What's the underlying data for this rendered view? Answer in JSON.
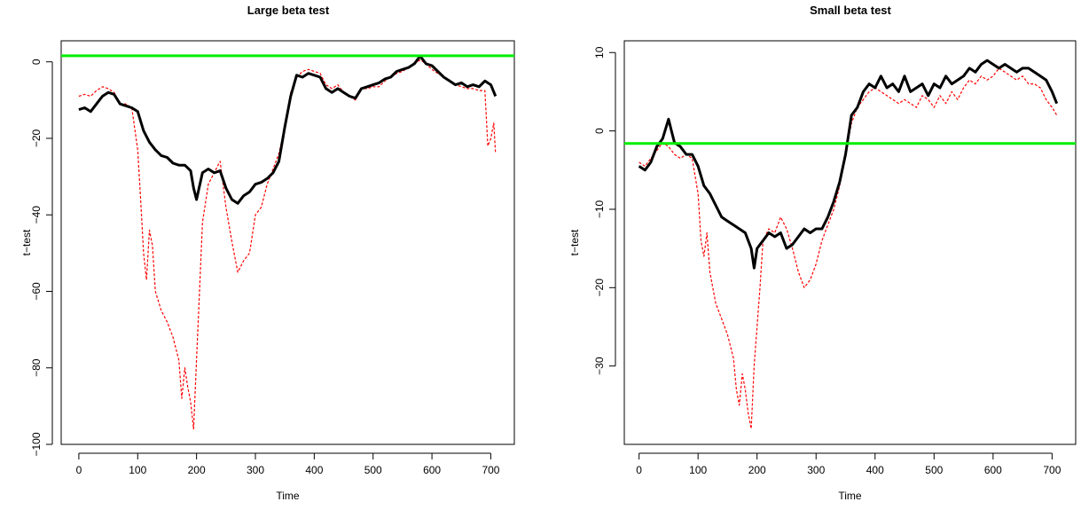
{
  "chart_data": [
    {
      "type": "line",
      "title": "Large beta test",
      "xlabel": "Time",
      "ylabel": "t−test",
      "xlim": [
        -30,
        740
      ],
      "ylim": [
        -100,
        5.5
      ],
      "xticks": [
        0,
        100,
        200,
        300,
        400,
        500,
        600,
        700
      ],
      "xtick_labels": [
        "0",
        "100",
        "200",
        "300",
        "400",
        "500",
        "600",
        "700"
      ],
      "yticks": [
        0,
        -20,
        -40,
        -60,
        -80,
        -100
      ],
      "ytick_labels": [
        "0",
        "−20",
        "−40",
        "−60",
        "−80",
        "−100"
      ],
      "grid": false,
      "hline": {
        "y": 1.6,
        "color": "#00ee00"
      },
      "series": [
        {
          "style": "solid-thick",
          "color": "#000000",
          "x": [
            0,
            10,
            20,
            30,
            40,
            50,
            60,
            70,
            80,
            90,
            100,
            110,
            120,
            130,
            140,
            150,
            160,
            170,
            180,
            190,
            195,
            200,
            210,
            220,
            230,
            240,
            250,
            260,
            270,
            280,
            290,
            300,
            310,
            320,
            330,
            340,
            350,
            360,
            370,
            380,
            390,
            400,
            410,
            420,
            430,
            440,
            450,
            460,
            470,
            480,
            490,
            500,
            510,
            520,
            530,
            540,
            550,
            560,
            570,
            580,
            590,
            600,
            610,
            620,
            630,
            640,
            650,
            660,
            670,
            680,
            690,
            700,
            708
          ],
          "y": [
            -12.5,
            -12,
            -13,
            -11,
            -9,
            -8,
            -8.5,
            -11,
            -11.5,
            -12,
            -13,
            -18,
            -21,
            -23,
            -24.5,
            -25,
            -26.5,
            -27,
            -27,
            -28.5,
            -33,
            -36,
            -29,
            -28,
            -29,
            -28.5,
            -33,
            -36,
            -37,
            -35,
            -34,
            -32,
            -31.5,
            -30.5,
            -29,
            -26,
            -17,
            -9,
            -3.5,
            -4,
            -3,
            -3.5,
            -4,
            -7,
            -8,
            -7,
            -8,
            -9,
            -9.5,
            -7,
            -6.5,
            -6,
            -5.5,
            -4.5,
            -4,
            -2.5,
            -2,
            -1.5,
            -0.5,
            1.5,
            -0.5,
            -1,
            -2.5,
            -4,
            -5,
            -6,
            -5.5,
            -6.5,
            -6,
            -6.5,
            -5,
            -6,
            -9
          ]
        },
        {
          "style": "dashed-thin",
          "color": "#ff0000",
          "x": [
            0,
            10,
            20,
            30,
            40,
            50,
            60,
            70,
            80,
            90,
            100,
            105,
            110,
            115,
            120,
            125,
            130,
            140,
            150,
            160,
            170,
            175,
            180,
            185,
            190,
            195,
            200,
            205,
            210,
            220,
            230,
            240,
            250,
            260,
            270,
            280,
            290,
            300,
            310,
            320,
            330,
            340,
            350,
            360,
            370,
            380,
            390,
            400,
            410,
            420,
            430,
            440,
            450,
            460,
            470,
            480,
            490,
            500,
            510,
            520,
            530,
            540,
            550,
            560,
            570,
            580,
            590,
            600,
            610,
            620,
            630,
            640,
            650,
            660,
            670,
            680,
            690,
            695,
            700,
            705,
            708
          ],
          "y": [
            -9,
            -8.5,
            -9,
            -7.5,
            -6.5,
            -7,
            -8,
            -11,
            -11,
            -12,
            -23,
            -36,
            -50,
            -57,
            -44,
            -48,
            -60,
            -65,
            -68,
            -72,
            -78,
            -88,
            -80,
            -85,
            -89,
            -96,
            -78,
            -60,
            -42,
            -32,
            -29,
            -26,
            -38,
            -47,
            -55,
            -52,
            -50,
            -40,
            -38,
            -32,
            -28,
            -24,
            -17,
            -8,
            -4,
            -2.5,
            -2,
            -2.5,
            -3,
            -6,
            -7,
            -6,
            -8,
            -9,
            -10,
            -7,
            -7,
            -6.5,
            -6.5,
            -5,
            -4,
            -3,
            -2.5,
            -1.5,
            -0.5,
            0.5,
            -0.5,
            -2,
            -3,
            -4,
            -5,
            -6,
            -6.5,
            -7,
            -7,
            -7.5,
            -7.5,
            -22,
            -20,
            -16,
            -24
          ]
        }
      ]
    },
    {
      "type": "line",
      "title": "Small beta test",
      "xlabel": "Time",
      "ylabel": "t−test",
      "xlim": [
        -25,
        740
      ],
      "ylim": [
        -40,
        11.5
      ],
      "xticks": [
        0,
        100,
        200,
        300,
        400,
        500,
        600,
        700
      ],
      "xtick_labels": [
        "0",
        "100",
        "200",
        "300",
        "400",
        "500",
        "600",
        "700"
      ],
      "yticks": [
        10,
        0,
        -10,
        -20,
        -30
      ],
      "ytick_labels": [
        "10",
        "0",
        "−10",
        "−20",
        "−30"
      ],
      "grid": false,
      "hline": {
        "y": -1.6,
        "color": "#00ee00"
      },
      "series": [
        {
          "style": "solid-thick",
          "color": "#000000",
          "x": [
            0,
            10,
            20,
            30,
            40,
            50,
            55,
            60,
            70,
            80,
            90,
            100,
            110,
            120,
            130,
            140,
            150,
            160,
            170,
            180,
            190,
            195,
            200,
            210,
            220,
            230,
            240,
            250,
            260,
            270,
            280,
            290,
            300,
            310,
            320,
            330,
            340,
            350,
            360,
            370,
            380,
            390,
            400,
            410,
            420,
            430,
            440,
            450,
            460,
            470,
            480,
            490,
            500,
            510,
            520,
            530,
            540,
            550,
            560,
            570,
            580,
            590,
            600,
            610,
            620,
            630,
            640,
            650,
            660,
            670,
            680,
            690,
            700,
            708
          ],
          "y": [
            -4.5,
            -5,
            -4,
            -2,
            -1,
            1.5,
            0,
            -1.5,
            -2,
            -3,
            -3,
            -4.5,
            -7,
            -8,
            -9.5,
            -11,
            -11.5,
            -12,
            -12.5,
            -13,
            -15,
            -17.5,
            -15,
            -14,
            -13,
            -13.5,
            -13,
            -15,
            -14.5,
            -13.5,
            -12.5,
            -13,
            -12.5,
            -12.5,
            -11,
            -9,
            -6.5,
            -3,
            2,
            3,
            5,
            6,
            5.5,
            7,
            5.5,
            6,
            5,
            7,
            5,
            5.5,
            6,
            4.5,
            6,
            5.5,
            7,
            6,
            6.5,
            7,
            8,
            7.5,
            8.5,
            9,
            8.5,
            8,
            8.5,
            8,
            7.5,
            8,
            8,
            7.5,
            7,
            6.5,
            5,
            3.5
          ]
        },
        {
          "style": "dashed-thin",
          "color": "#ff0000",
          "x": [
            0,
            10,
            20,
            30,
            40,
            50,
            60,
            70,
            80,
            90,
            100,
            105,
            110,
            115,
            120,
            125,
            130,
            140,
            150,
            160,
            165,
            170,
            175,
            180,
            185,
            190,
            195,
            200,
            205,
            210,
            220,
            230,
            240,
            250,
            260,
            270,
            280,
            290,
            300,
            310,
            320,
            330,
            340,
            350,
            360,
            370,
            380,
            390,
            400,
            410,
            420,
            430,
            440,
            450,
            460,
            470,
            480,
            490,
            500,
            510,
            520,
            530,
            540,
            550,
            560,
            570,
            580,
            590,
            600,
            610,
            620,
            630,
            640,
            650,
            660,
            670,
            680,
            690,
            700,
            708
          ],
          "y": [
            -4,
            -4.5,
            -3.5,
            -2.5,
            -1.5,
            -2,
            -3,
            -3.5,
            -3,
            -3.5,
            -8,
            -14,
            -16,
            -13,
            -18,
            -20,
            -22,
            -24,
            -26,
            -29,
            -33,
            -35,
            -31,
            -33,
            -36,
            -38,
            -30,
            -25,
            -20,
            -14,
            -12.5,
            -13,
            -11,
            -12.5,
            -15,
            -18,
            -20,
            -19,
            -17,
            -14,
            -12,
            -10,
            -7,
            -3,
            1,
            3,
            4,
            5,
            5.5,
            5,
            4.5,
            4,
            3.5,
            4,
            3.5,
            3,
            4.5,
            4,
            3,
            4.5,
            3.5,
            5,
            4,
            5.5,
            6.5,
            6,
            7,
            6.5,
            7,
            8,
            7.5,
            7,
            6.5,
            7,
            6,
            6,
            5.5,
            4,
            3,
            2
          ]
        }
      ]
    }
  ]
}
